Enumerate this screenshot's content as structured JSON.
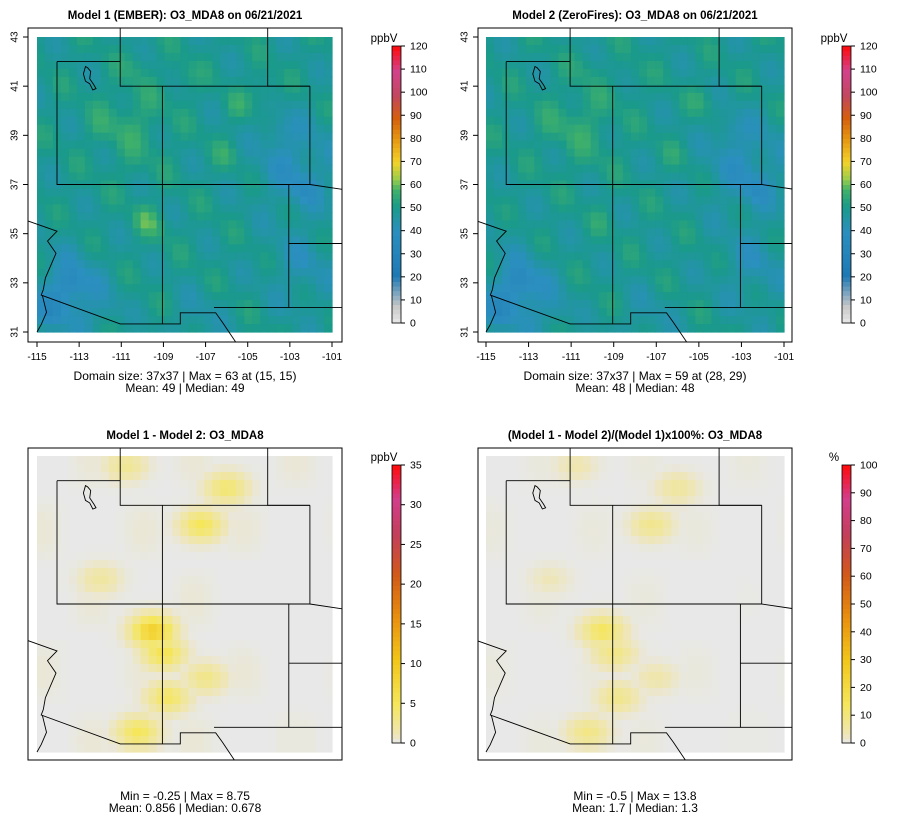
{
  "chart_data": [
    {
      "type": "heatmap",
      "title": "Model 1 (EMBER): O3_MDA8 on 06/21/2021",
      "unit": "ppbV",
      "colorbar_ticks": [
        "0",
        "10",
        "20",
        "30",
        "40",
        "50",
        "60",
        "70",
        "80",
        "90",
        "100",
        "110",
        "120"
      ],
      "colorbar_range": [
        0,
        120
      ],
      "xticks": [
        "-115",
        "-113",
        "-111",
        "-109",
        "-107",
        "-105",
        "-103",
        "-101"
      ],
      "yticks": [
        "31",
        "33",
        "35",
        "37",
        "39",
        "41",
        "43"
      ],
      "xlim": [
        -115,
        -101
      ],
      "ylim": [
        31,
        43
      ],
      "axes_shown": true,
      "grid_size": [
        37,
        37
      ],
      "max_value": 63,
      "max_location": [
        15,
        15
      ],
      "mean": 49,
      "median": 49,
      "stats_line1": "Domain size: 37x37 | Max = 63 at (15, 15)",
      "stats_line2": "Mean: 49 |  Median: 49",
      "regions": [
        {
          "lon": -109.9,
          "lat": 35.6,
          "value": 63
        },
        {
          "lon": -109.3,
          "lat": 35.2,
          "value": 58
        },
        {
          "lon": -106.0,
          "lat": 38.2,
          "value": 60
        },
        {
          "lon": -105.5,
          "lat": 40.2,
          "value": 59
        },
        {
          "lon": -104.2,
          "lat": 40.8,
          "value": 62
        },
        {
          "lon": -110.3,
          "lat": 41.8,
          "value": 58
        },
        {
          "lon": -108.0,
          "lat": 41.3,
          "value": 60
        },
        {
          "lon": -112.0,
          "lat": 39.2,
          "value": 56
        },
        {
          "lon": -103.6,
          "lat": 39.2,
          "value": 40
        },
        {
          "lon": -102.3,
          "lat": 36.8,
          "value": 38
        },
        {
          "lon": -102.2,
          "lat": 34.0,
          "value": 45
        },
        {
          "lon": -113.4,
          "lat": 33.0,
          "value": 36
        },
        {
          "lon": -114.4,
          "lat": 31.8,
          "value": 33
        },
        {
          "lon": -111.6,
          "lat": 31.8,
          "value": 42
        },
        {
          "lon": -110.5,
          "lat": 37.6,
          "value": 54
        },
        {
          "lon": -113.8,
          "lat": 35.5,
          "value": 48
        }
      ]
    },
    {
      "type": "heatmap",
      "title": "Model 2 (ZeroFires): O3_MDA8 on 06/21/2021",
      "unit": "ppbV",
      "colorbar_ticks": [
        "0",
        "10",
        "20",
        "30",
        "40",
        "50",
        "60",
        "70",
        "80",
        "90",
        "100",
        "110",
        "120"
      ],
      "colorbar_range": [
        0,
        120
      ],
      "xticks": [
        "-115",
        "-113",
        "-111",
        "-109",
        "-107",
        "-105",
        "-103",
        "-101"
      ],
      "yticks": [
        "31",
        "33",
        "35",
        "37",
        "39",
        "41",
        "43"
      ],
      "xlim": [
        -115,
        -101
      ],
      "ylim": [
        31,
        43
      ],
      "axes_shown": true,
      "grid_size": [
        37,
        37
      ],
      "max_value": 59,
      "max_location": [
        28,
        29
      ],
      "mean": 48,
      "median": 48,
      "stats_line1": "Domain size: 37x37 | Max = 59 at (28, 29)",
      "stats_line2": "Mean: 48 |  Median: 48",
      "regions": [
        {
          "lon": -104.8,
          "lat": 40.4,
          "value": 59
        },
        {
          "lon": -106.0,
          "lat": 38.2,
          "value": 56
        },
        {
          "lon": -109.6,
          "lat": 35.5,
          "value": 55
        },
        {
          "lon": -110.3,
          "lat": 41.8,
          "value": 56
        },
        {
          "lon": -108.0,
          "lat": 41.3,
          "value": 56
        },
        {
          "lon": -112.0,
          "lat": 39.2,
          "value": 55
        },
        {
          "lon": -103.6,
          "lat": 39.2,
          "value": 40
        },
        {
          "lon": -102.3,
          "lat": 36.8,
          "value": 38
        },
        {
          "lon": -102.2,
          "lat": 34.0,
          "value": 45
        },
        {
          "lon": -113.4,
          "lat": 33.0,
          "value": 35
        },
        {
          "lon": -114.4,
          "lat": 31.8,
          "value": 33
        },
        {
          "lon": -111.6,
          "lat": 31.8,
          "value": 40
        },
        {
          "lon": -110.5,
          "lat": 37.6,
          "value": 52
        },
        {
          "lon": -113.8,
          "lat": 35.5,
          "value": 46
        }
      ]
    },
    {
      "type": "heatmap",
      "title": "Model 1 - Model 2: O3_MDA8",
      "unit": "ppbV",
      "colorbar_ticks": [
        "0",
        "5",
        "10",
        "15",
        "20",
        "25",
        "30",
        "35"
      ],
      "colorbar_range": [
        0,
        35
      ],
      "axes_shown": false,
      "xlim": [
        -115,
        -101
      ],
      "ylim": [
        31,
        43
      ],
      "min_value": -0.25,
      "max_value": 8.75,
      "mean": 0.856,
      "median": 0.678,
      "stats_line1": "Min = -0.25 | Max = 8.75",
      "stats_line2": "Mean: 0.856 |  Median: 0.678",
      "regions": [
        {
          "lon": -109.5,
          "lat": 35.9,
          "value": 8.75
        },
        {
          "lon": -109.0,
          "lat": 35.0,
          "value": 5.5
        },
        {
          "lon": -108.8,
          "lat": 33.2,
          "value": 4.5
        },
        {
          "lon": -110.2,
          "lat": 31.8,
          "value": 5.0
        },
        {
          "lon": -107.2,
          "lat": 40.2,
          "value": 5.0
        },
        {
          "lon": -106.0,
          "lat": 41.7,
          "value": 4.0
        },
        {
          "lon": -110.8,
          "lat": 42.6,
          "value": 2.5
        },
        {
          "lon": -112.0,
          "lat": 38.0,
          "value": 2.0
        },
        {
          "lon": -107.0,
          "lat": 34.0,
          "value": 3.0
        }
      ]
    },
    {
      "type": "heatmap",
      "title": "(Model 1 - Model 2)/(Model 1)x100%: O3_MDA8",
      "unit": "%",
      "colorbar_ticks": [
        "0",
        "10",
        "20",
        "30",
        "40",
        "50",
        "60",
        "70",
        "80",
        "90",
        "100"
      ],
      "colorbar_range": [
        0,
        100
      ],
      "axes_shown": false,
      "xlim": [
        -115,
        -101
      ],
      "ylim": [
        31,
        43
      ],
      "min_value": -0.5,
      "max_value": 13.8,
      "mean": 1.7,
      "median": 1.3,
      "stats_line1": "Min = -0.5 | Max = 13.8",
      "stats_line2": "Mean: 1.7 |  Median: 1.3",
      "regions": [
        {
          "lon": -109.5,
          "lat": 35.9,
          "value": 13.8
        },
        {
          "lon": -109.0,
          "lat": 35.0,
          "value": 9.0
        },
        {
          "lon": -108.8,
          "lat": 33.2,
          "value": 8.0
        },
        {
          "lon": -110.2,
          "lat": 31.8,
          "value": 9.0
        },
        {
          "lon": -107.2,
          "lat": 40.2,
          "value": 8.0
        },
        {
          "lon": -106.0,
          "lat": 41.7,
          "value": 6.0
        },
        {
          "lon": -110.8,
          "lat": 42.6,
          "value": 4.0
        },
        {
          "lon": -112.0,
          "lat": 38.0,
          "value": 3.0
        },
        {
          "lon": -107.0,
          "lat": 34.0,
          "value": 4.5
        }
      ]
    }
  ]
}
